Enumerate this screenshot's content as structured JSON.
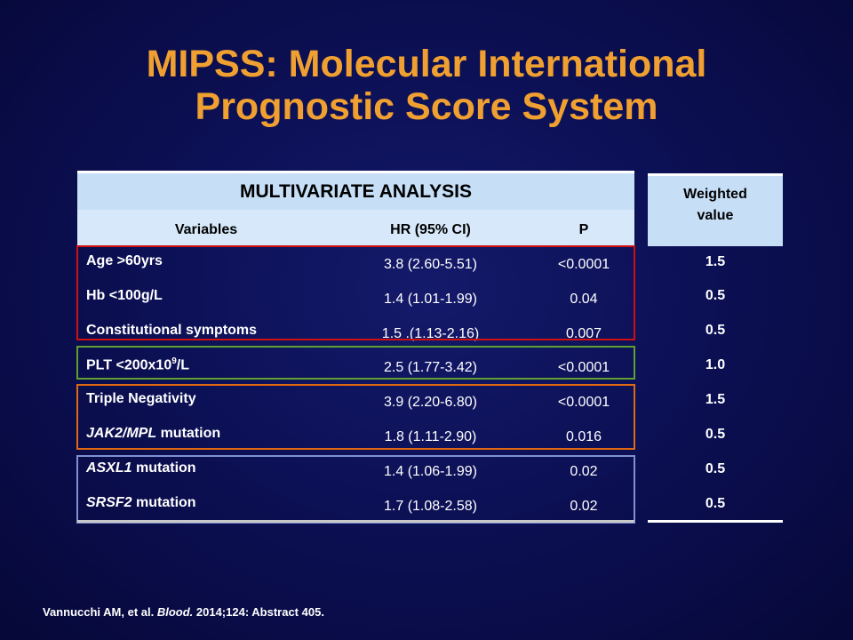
{
  "title": {
    "line1": "MIPSS: Molecular International",
    "line2": "Prognostic Score System"
  },
  "table": {
    "heading": "MULTIVARIATE ANALYSIS",
    "col_variables": "Variables",
    "col_hr": "HR (95% CI)",
    "col_p": "P",
    "weighted_heading_line1": "Weighted",
    "weighted_heading_line2": "value",
    "rows": [
      {
        "variable": "Age >60yrs",
        "hr": "3.8 (2.60-5.51)",
        "p": "<0.0001",
        "weighted": "1.5"
      },
      {
        "variable": "Hb <100g/L",
        "hr": "1.4 (1.01-1.99)",
        "p": "0.04",
        "weighted": "0.5"
      },
      {
        "variable": "Constitutional symptoms",
        "hr": "1.5 .(1.13-2.16)",
        "p": "0.007",
        "weighted": "0.5"
      },
      {
        "variable_pre": "PLT <200x10",
        "variable_sup": "9",
        "variable_post": "/L",
        "hr": "2.5 (1.77-3.42)",
        "p": "<0.0001",
        "weighted": "1.0"
      },
      {
        "variable": "Triple Negativity",
        "hr": "3.9 (2.20-6.80)",
        "p": "<0.0001",
        "weighted": "1.5"
      },
      {
        "variable_italic": "JAK2/MPL",
        "variable_rest": " mutation",
        "hr": "1.8 (1.11-2.90)",
        "p": "0.016",
        "weighted": "0.5"
      },
      {
        "variable_italic": "ASXL1",
        "variable_rest": " mutation",
        "hr": "1.4 (1.06-1.99)",
        "p": "0.02",
        "weighted": "0.5"
      },
      {
        "variable_italic": "SRSF2",
        "variable_rest": " mutation",
        "hr": "1.7 (1.08-2.58)",
        "p": "0.02",
        "weighted": "0.5"
      }
    ]
  },
  "citation": {
    "pre": "Vannucchi AM, et al. ",
    "journal": "Blood.",
    "post": " 2014;124: Abstract 405."
  },
  "colors": {
    "title": "#f0a030",
    "header_bg": "#c6dff7",
    "group1_border": "#d01010",
    "group2_border": "#5fa030",
    "group3_border": "#e06810",
    "group4_border": "#8090d0"
  }
}
